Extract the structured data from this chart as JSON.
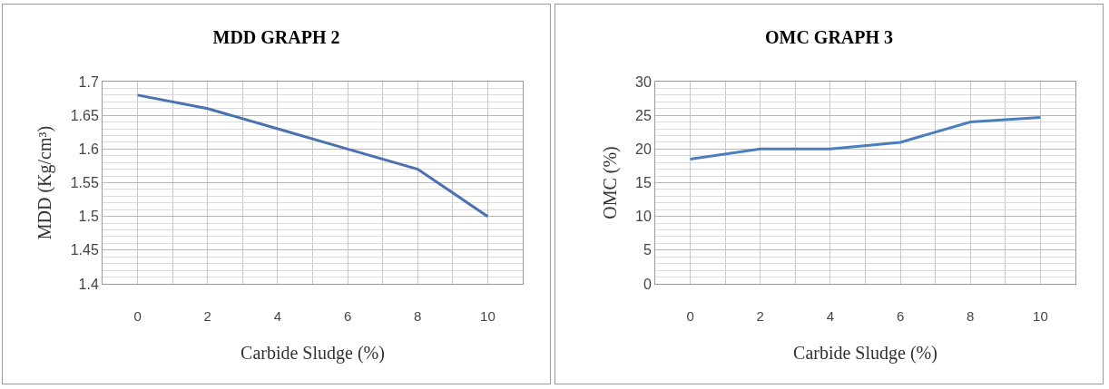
{
  "chart_data": [
    {
      "type": "line",
      "title": "MDD GRAPH 2",
      "xlabel": "Carbide Sludge (%)",
      "ylabel": "MDD (Kg/cm³)",
      "x": [
        0,
        2,
        4,
        6,
        8,
        10
      ],
      "series": [
        {
          "color": "#4a72b0",
          "values": [
            1.68,
            1.66,
            1.63,
            1.6,
            1.57,
            1.5
          ]
        }
      ],
      "xlim": [
        -1,
        11
      ],
      "xticks": [
        0,
        2,
        4,
        6,
        8,
        10
      ],
      "ylim": [
        1.4,
        1.7
      ],
      "yticks": [
        1.4,
        1.45,
        1.5,
        1.55,
        1.6,
        1.65,
        1.7
      ],
      "grid": true,
      "marker": "none",
      "line_style": "solid"
    },
    {
      "type": "line",
      "title": "OMC GRAPH 3",
      "xlabel": "Carbide Sludge (%)",
      "ylabel": "OMC (%)",
      "x": [
        0,
        2,
        4,
        6,
        8,
        10
      ],
      "series": [
        {
          "color": "#4a7ebf",
          "values": [
            18.5,
            20,
            20,
            21,
            24,
            24.7
          ]
        }
      ],
      "xlim": [
        -1,
        11
      ],
      "xticks": [
        0,
        2,
        4,
        6,
        8,
        10
      ],
      "ylim": [
        0,
        30
      ],
      "yticks": [
        0,
        5,
        10,
        15,
        20,
        25,
        30
      ],
      "grid": true,
      "marker": "none",
      "line_style": "solid"
    }
  ]
}
